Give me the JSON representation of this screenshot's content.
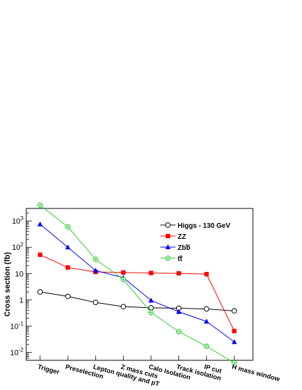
{
  "chart_data": {
    "type": "line",
    "ylabel": "Cross section (fb)",
    "yscale": "log",
    "ylim": [
      0.005,
      3000
    ],
    "yticks": [
      {
        "value": 0.01,
        "base": "10",
        "exp": "-2"
      },
      {
        "value": 0.1,
        "base": "10",
        "exp": "-1"
      },
      {
        "value": 1,
        "base": "1",
        "exp": ""
      },
      {
        "value": 10,
        "base": "10",
        "exp": ""
      },
      {
        "value": 100,
        "base": "10",
        "exp": "2"
      },
      {
        "value": 1000,
        "base": "10",
        "exp": "3"
      }
    ],
    "categories": [
      "Trigger",
      "Preselection",
      "Lepton quality and pT",
      "Z mass cuts",
      "Calo Isolation",
      "Track isolation",
      "IP cut",
      "H mass window"
    ],
    "legend_position": "top-right",
    "grid": false,
    "series": [
      {
        "name": "Higgs - 130 GeV",
        "color": "#000000",
        "marker": "open-circle",
        "values": [
          2.0,
          1.35,
          0.8,
          0.55,
          0.5,
          0.48,
          0.45,
          0.38
        ]
      },
      {
        "name": "ZZ",
        "color": "#ff0000",
        "marker": "filled-square",
        "values": [
          52,
          17,
          11.5,
          11,
          10.5,
          10.2,
          9.5,
          0.065
        ]
      },
      {
        "name": "Zbb",
        "color": "#0000ff",
        "marker": "filled-triangle",
        "values": [
          750,
          100,
          13,
          7,
          0.95,
          0.35,
          0.15,
          0.025
        ]
      },
      {
        "name": "tt",
        "color": "#33cc33",
        "marker": "open-crossed-circle",
        "values": [
          4000,
          600,
          35,
          6,
          0.33,
          0.062,
          0.017,
          0.004
        ]
      }
    ]
  }
}
